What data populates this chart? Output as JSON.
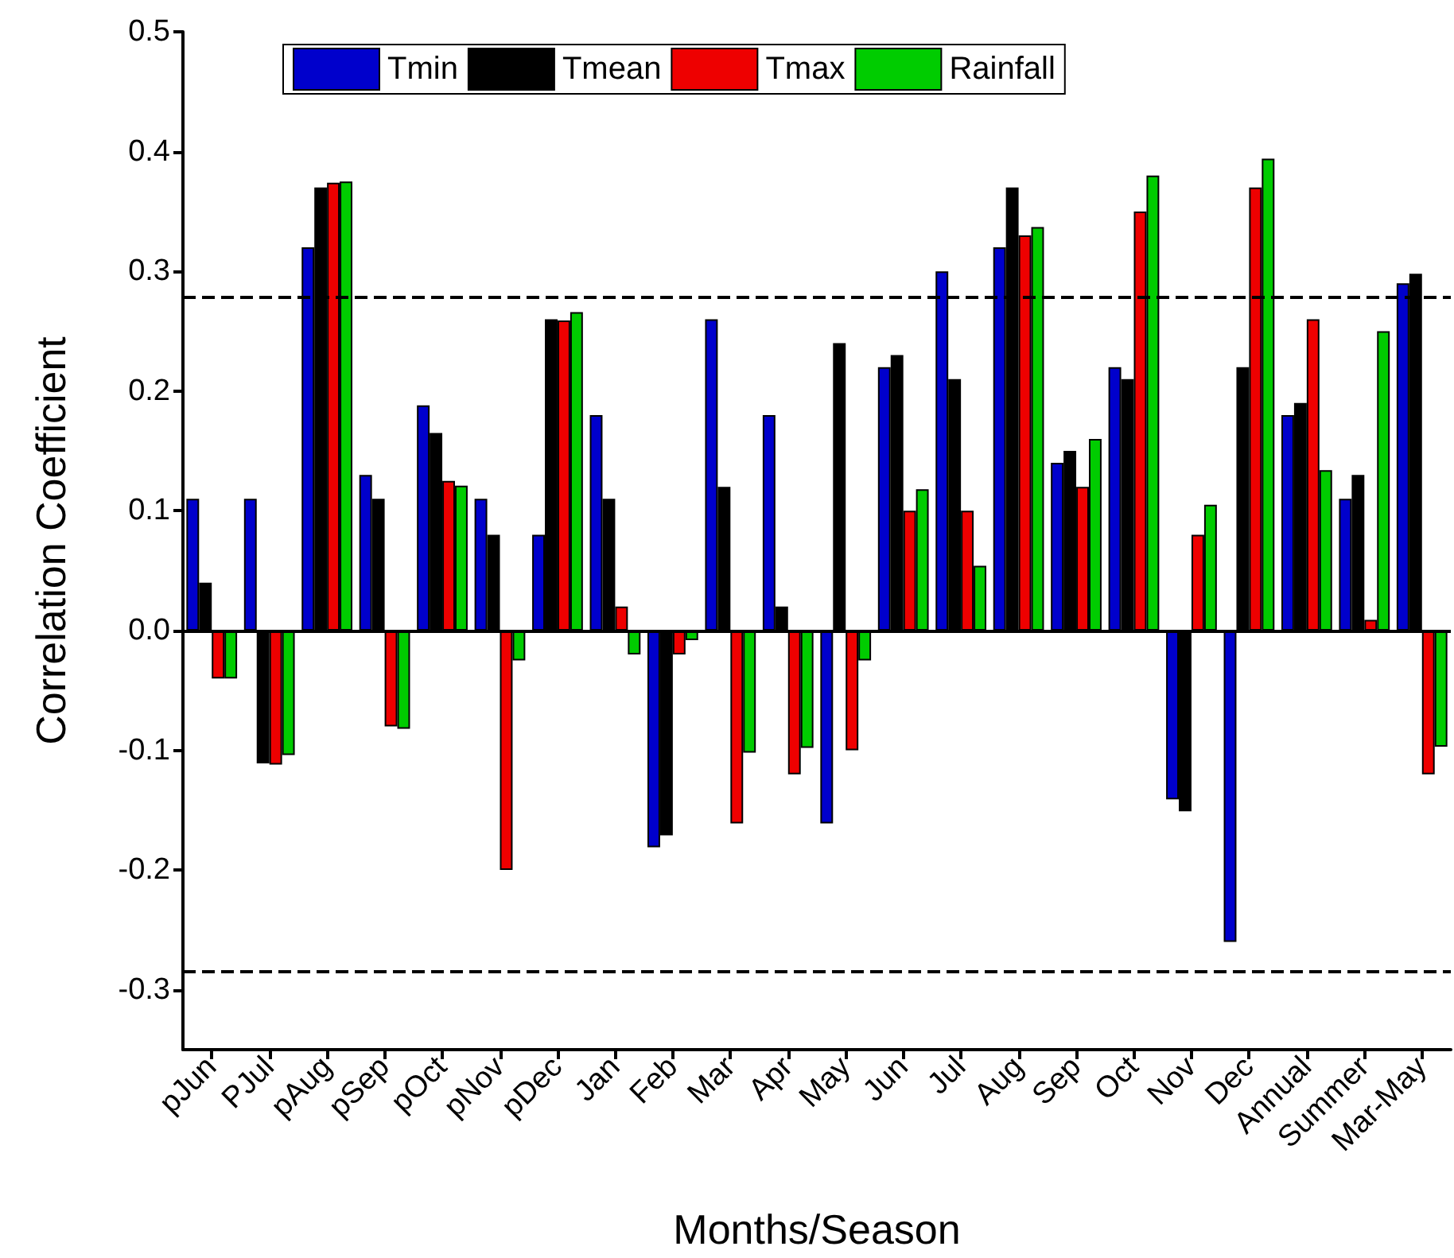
{
  "chart_data": {
    "type": "bar",
    "xlabel": "Months/Season",
    "ylabel": "Correlation Coefficient",
    "categories": [
      "pJun",
      "PJul",
      "pAug",
      "pSep",
      "pOct",
      "pNov",
      "pDec",
      "Jan",
      "Feb",
      "Mar",
      "Apr",
      "May",
      "Jun",
      "Jul",
      "Aug",
      "Sep",
      "Oct",
      "Nov",
      "Dec",
      "Annual",
      "Summer",
      "Mar-May"
    ],
    "series": [
      {
        "name": "Tmin",
        "color": "#0000cc",
        "values": [
          0.11,
          0.11,
          0.32,
          0.13,
          0.188,
          0.11,
          0.08,
          0.18,
          -0.181,
          0.26,
          0.18,
          -0.161,
          0.22,
          0.3,
          0.32,
          0.14,
          0.22,
          -0.141,
          -0.26,
          0.18,
          0.11,
          0.29
        ]
      },
      {
        "name": "Tmean",
        "color": "#000000",
        "values": [
          0.04,
          -0.111,
          0.37,
          0.11,
          0.165,
          0.08,
          0.26,
          0.11,
          -0.171,
          0.12,
          0.02,
          0.24,
          0.23,
          0.21,
          0.37,
          0.15,
          0.21,
          -0.151,
          0.22,
          0.19,
          0.13,
          0.298
        ]
      },
      {
        "name": "Tmax",
        "color": "#ee0000",
        "values": [
          -0.04,
          -0.112,
          0.374,
          -0.08,
          0.125,
          -0.2,
          0.259,
          0.02,
          -0.02,
          -0.161,
          -0.12,
          -0.1,
          0.1,
          0.1,
          0.33,
          0.12,
          0.35,
          0.08,
          0.37,
          0.26,
          0.009,
          -0.12
        ]
      },
      {
        "name": "Rainfall",
        "color": "#00cc00",
        "values": [
          -0.04,
          -0.104,
          0.375,
          -0.082,
          0.121,
          -0.025,
          0.266,
          -0.02,
          -0.008,
          -0.102,
          -0.098,
          -0.025,
          0.118,
          0.054,
          0.337,
          0.16,
          0.38,
          0.105,
          0.394,
          0.134,
          0.25,
          -0.097
        ]
      }
    ],
    "ylim": [
      -0.35,
      0.5
    ],
    "yticks": [
      -0.3,
      -0.2,
      -0.1,
      {
        "value": 0,
        "label": "0.0"
      },
      0.1,
      0.2,
      0.3,
      0.4,
      0.5
    ],
    "ref_lines": [
      {
        "axis": "y",
        "value": 0,
        "color": "#000000",
        "line_style": "solid"
      },
      {
        "axis": "y",
        "value": 0.278,
        "color": "#000000",
        "line_style": "dashed"
      },
      {
        "axis": "y",
        "value": -0.285,
        "color": "#000000",
        "line_style": "dashed"
      }
    ],
    "grid": false,
    "legend": "top"
  }
}
